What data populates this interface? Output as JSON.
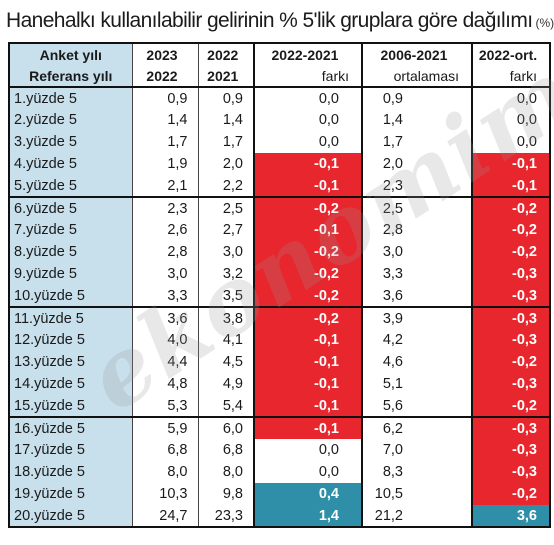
{
  "title": {
    "main": "Hanehalkı kullanılabilir gelirinin % 5'lik gruplara göre dağılımı",
    "unit": "(%)"
  },
  "watermark": "ekonomim",
  "header": {
    "row1": [
      "Anket yılı",
      "2023",
      "2022",
      "2022-2021",
      "2006-2021",
      "2022-ort."
    ],
    "row2": [
      "Referans yılı",
      "2022",
      "2021",
      "farkı",
      "ortalaması",
      "farkı"
    ]
  },
  "rows": [
    {
      "label": "1.yüzde 5",
      "v2023": "0,9",
      "v2022": "0,9",
      "diff": "0,0",
      "avg": "0,9",
      "avgdiff": "0,0"
    },
    {
      "label": "2.yüzde 5",
      "v2023": "1,4",
      "v2022": "1,4",
      "diff": "0,0",
      "avg": "1,4",
      "avgdiff": "0,0"
    },
    {
      "label": "3.yüzde 5",
      "v2023": "1,7",
      "v2022": "1,7",
      "diff": "0,0",
      "avg": "1,7",
      "avgdiff": "0,0"
    },
    {
      "label": "4.yüzde 5",
      "v2023": "1,9",
      "v2022": "2,0",
      "diff": "-0,1",
      "avg": "2,0",
      "avgdiff": "-0,1"
    },
    {
      "label": "5.yüzde 5",
      "v2023": "2,1",
      "v2022": "2,2",
      "diff": "-0,1",
      "avg": "2,3",
      "avgdiff": "-0,1"
    },
    {
      "label": "6.yüzde 5",
      "v2023": "2,3",
      "v2022": "2,5",
      "diff": "-0,2",
      "avg": "2,5",
      "avgdiff": "-0,2"
    },
    {
      "label": "7.yüzde 5",
      "v2023": "2,6",
      "v2022": "2,7",
      "diff": "-0,1",
      "avg": "2,8",
      "avgdiff": "-0,2"
    },
    {
      "label": "8.yüzde 5",
      "v2023": "2,8",
      "v2022": "3,0",
      "diff": "-0,2",
      "avg": "3,0",
      "avgdiff": "-0,2"
    },
    {
      "label": "9.yüzde 5",
      "v2023": "3,0",
      "v2022": "3,2",
      "diff": "-0,2",
      "avg": "3,3",
      "avgdiff": "-0,3"
    },
    {
      "label": "10.yüzde 5",
      "v2023": "3,3",
      "v2022": "3,5",
      "diff": "-0,2",
      "avg": "3,6",
      "avgdiff": "-0,3"
    },
    {
      "label": "11.yüzde 5",
      "v2023": "3,6",
      "v2022": "3,8",
      "diff": "-0,2",
      "avg": "3,9",
      "avgdiff": "-0,3"
    },
    {
      "label": "12.yüzde 5",
      "v2023": "4,0",
      "v2022": "4,1",
      "diff": "-0,1",
      "avg": "4,2",
      "avgdiff": "-0,3"
    },
    {
      "label": "13.yüzde 5",
      "v2023": "4,4",
      "v2022": "4,5",
      "diff": "-0,1",
      "avg": "4,6",
      "avgdiff": "-0,2"
    },
    {
      "label": "14.yüzde 5",
      "v2023": "4,8",
      "v2022": "4,9",
      "diff": "-0,1",
      "avg": "5,1",
      "avgdiff": "-0,3"
    },
    {
      "label": "15.yüzde 5",
      "v2023": "5,3",
      "v2022": "5,4",
      "diff": "-0,1",
      "avg": "5,6",
      "avgdiff": "-0,2"
    },
    {
      "label": "16.yüzde 5",
      "v2023": "5,9",
      "v2022": "6,0",
      "diff": "-0,1",
      "avg": "6,2",
      "avgdiff": "-0,3"
    },
    {
      "label": "17.yüzde 5",
      "v2023": "6,8",
      "v2022": "6,8",
      "diff": "0,0",
      "avg": "7,0",
      "avgdiff": "-0,3"
    },
    {
      "label": "18.yüzde 5",
      "v2023": "8,0",
      "v2022": "8,0",
      "diff": "0,0",
      "avg": "8,3",
      "avgdiff": "-0,3"
    },
    {
      "label": "19.yüzde 5",
      "v2023": "10,3",
      "v2022": "9,8",
      "diff": "0,4",
      "avg": "10,5",
      "avgdiff": "-0,2"
    },
    {
      "label": "20.yüzde 5",
      "v2023": "24,7",
      "v2022": "23,3",
      "diff": "1,4",
      "avg": "21,2",
      "avgdiff": "3,6"
    }
  ],
  "colors": {
    "label_bg": "#c8dfec",
    "negative": "#e8262e",
    "positive": "#2f8fa8",
    "border": "#111111"
  }
}
